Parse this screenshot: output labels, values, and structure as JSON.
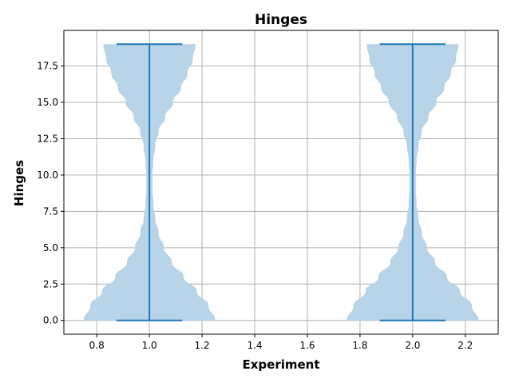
{
  "chart_data": {
    "type": "violin",
    "title": "Hinges",
    "xlabel": "Experiment",
    "ylabel": "Hinges",
    "xlim": [
      0.675,
      2.325
    ],
    "ylim": [
      -0.95,
      19.95
    ],
    "xticks": [
      "0.8",
      "1.0",
      "1.2",
      "1.4",
      "1.6",
      "1.8",
      "2.0",
      "2.2"
    ],
    "yticks": [
      "0.0",
      "2.5",
      "5.0",
      "7.5",
      "10.0",
      "12.5",
      "15.0",
      "17.5"
    ],
    "grid": true,
    "violin_color": "#b8d4e8",
    "line_color": "#1f77b4",
    "violins": [
      {
        "position": 1.0,
        "min": 0,
        "max": 19,
        "cap_halfwidth": 0.125,
        "profile_y": [
          0,
          1,
          2,
          3,
          4,
          5,
          6,
          7,
          8,
          9,
          10,
          11,
          12,
          13,
          14,
          15,
          16,
          17,
          18,
          19
        ],
        "profile_halfwidth": [
          0.25,
          0.225,
          0.18,
          0.13,
          0.085,
          0.055,
          0.035,
          0.022,
          0.015,
          0.012,
          0.012,
          0.015,
          0.022,
          0.035,
          0.06,
          0.09,
          0.12,
          0.145,
          0.165,
          0.175
        ]
      },
      {
        "position": 2.0,
        "min": 0,
        "max": 19,
        "cap_halfwidth": 0.125,
        "profile_y": [
          0,
          1,
          2,
          3,
          4,
          5,
          6,
          7,
          8,
          9,
          10,
          11,
          12,
          13,
          14,
          15,
          16,
          17,
          18,
          19
        ],
        "profile_halfwidth": [
          0.25,
          0.225,
          0.18,
          0.13,
          0.085,
          0.055,
          0.035,
          0.022,
          0.015,
          0.012,
          0.012,
          0.015,
          0.022,
          0.035,
          0.06,
          0.09,
          0.12,
          0.145,
          0.165,
          0.175
        ]
      }
    ]
  }
}
